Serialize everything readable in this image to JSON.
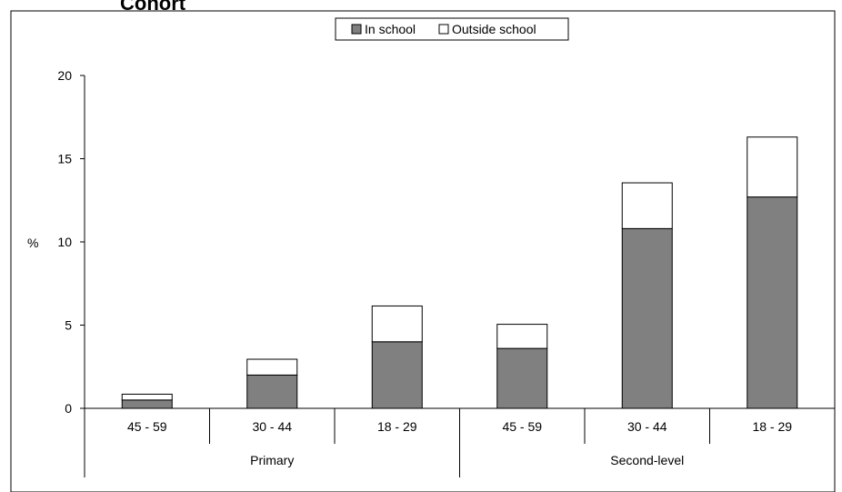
{
  "chart_data": {
    "type": "bar",
    "stacked": true,
    "title_fragment": "Cohort",
    "ylabel": "%",
    "ylim": [
      0,
      20
    ],
    "yticks": [
      0,
      5,
      10,
      15,
      20
    ],
    "categories": [
      "45 - 59",
      "30 - 44",
      "18 - 29",
      "45 - 59",
      "30 - 44",
      "18 - 29"
    ],
    "groups": [
      {
        "label": "Primary",
        "span": 3
      },
      {
        "label": "Second-level",
        "span": 3
      }
    ],
    "series": [
      {
        "name": "In school",
        "color": "#808080",
        "values": [
          0.5,
          2.0,
          4.0,
          3.6,
          10.8,
          12.7
        ]
      },
      {
        "name": "Outside school",
        "color": "#ffffff",
        "values": [
          0.35,
          0.95,
          2.15,
          1.45,
          2.75,
          3.6
        ]
      }
    ],
    "legend_position": "top-center",
    "grid": false
  }
}
